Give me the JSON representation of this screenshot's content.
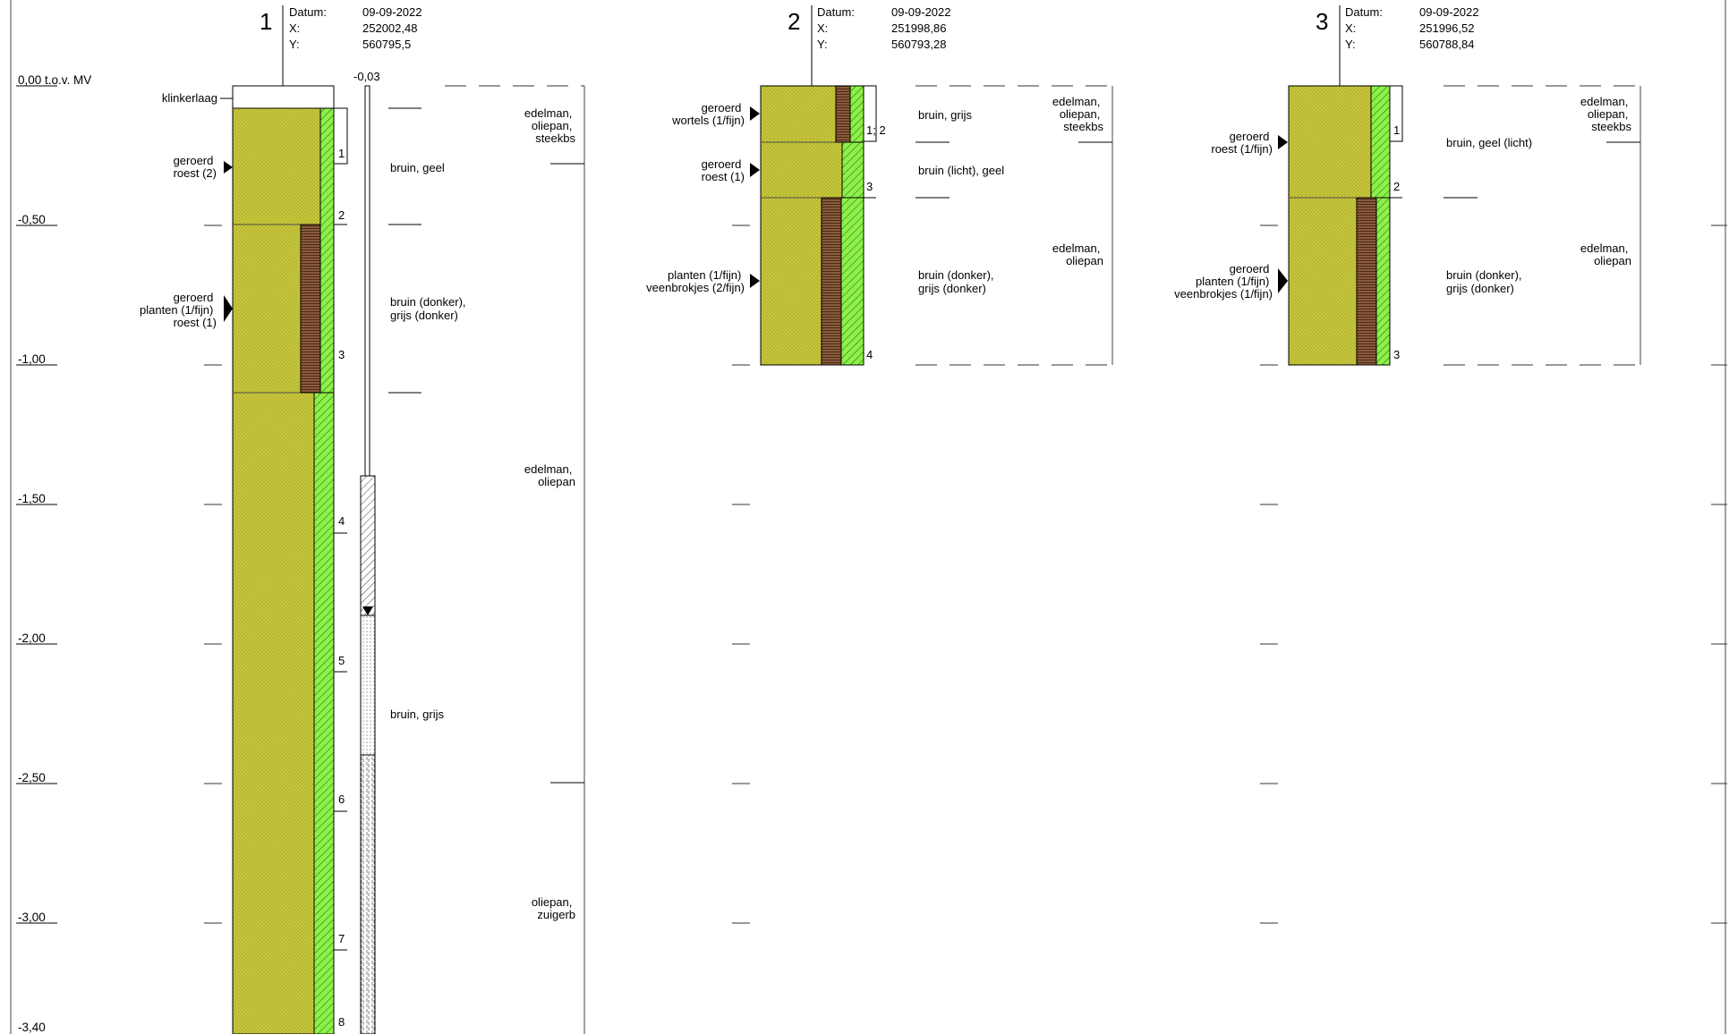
{
  "axis": {
    "reference_label": "0,00 t.o.v. MV",
    "ticks": [
      "-0,50",
      "-1,00",
      "-1,50",
      "-2,00",
      "-2,50",
      "-3,00",
      "-3,40"
    ]
  },
  "borings": [
    {
      "number": "1",
      "meta": [
        [
          "Datum:",
          "09-09-2022"
        ],
        [
          "X:",
          "252002,48"
        ],
        [
          "Y:",
          "560795,5"
        ]
      ],
      "top_label": "klinkerlaag",
      "well_top": "-0,03",
      "sample_numbers": [
        "1",
        "2",
        "3",
        "4",
        "5",
        "6",
        "7",
        "8"
      ],
      "annotations": [
        {
          "lines": [
            "geroerd",
            "roest (2)"
          ]
        },
        {
          "lines": [
            "geroerd",
            "planten (1/fijn)",
            "roest (1)"
          ]
        }
      ],
      "colors": [
        "bruin, geel",
        "bruin (donker),",
        "grijs (donker)",
        "bruin, grijs"
      ],
      "remarks": [
        {
          "lines": [
            "edelman,",
            "oliepan,",
            "steekbs"
          ]
        },
        {
          "lines": [
            "edelman,",
            "oliepan"
          ]
        },
        {
          "lines": [
            "oliepan,",
            "zuigerb"
          ]
        }
      ]
    },
    {
      "number": "2",
      "meta": [
        [
          "Datum:",
          "09-09-2022"
        ],
        [
          "X:",
          "251998,86"
        ],
        [
          "Y:",
          "560793,28"
        ]
      ],
      "sample_numbers": [
        "1; 2",
        "3",
        "4"
      ],
      "annotations": [
        {
          "lines": [
            "geroerd",
            "wortels (1/fijn)"
          ]
        },
        {
          "lines": [
            "geroerd",
            "roest (1)"
          ]
        },
        {
          "lines": [
            "planten (1/fijn)",
            "veenbrokjes (2/fijn)"
          ]
        }
      ],
      "colors": [
        "bruin, grijs",
        "bruin (licht), geel",
        "bruin (donker),",
        "grijs (donker)"
      ],
      "remarks": [
        {
          "lines": [
            "edelman,",
            "oliepan,",
            "steekbs"
          ]
        },
        {
          "lines": [
            "edelman,",
            "oliepan"
          ]
        }
      ]
    },
    {
      "number": "3",
      "meta": [
        [
          "Datum:",
          "09-09-2022"
        ],
        [
          "X:",
          "251996,52"
        ],
        [
          "Y:",
          "560788,84"
        ]
      ],
      "sample_numbers": [
        "1",
        "2",
        "3"
      ],
      "annotations": [
        {
          "lines": [
            "geroerd",
            "roest (1/fijn)"
          ]
        },
        {
          "lines": [
            "geroerd",
            "planten (1/fijn)",
            "veenbrokjes (1/fijn)"
          ]
        }
      ],
      "colors": [
        "bruin, geel (licht)",
        "bruin (donker),",
        "grijs (donker)"
      ],
      "remarks": [
        {
          "lines": [
            "edelman,",
            "oliepan,",
            "steekbs"
          ]
        },
        {
          "lines": [
            "edelman,",
            "oliepan"
          ]
        }
      ]
    }
  ],
  "colors_fill": {
    "sand": "#c8c83a",
    "peat": "#8a5a3a",
    "green": "#7ee83a"
  }
}
